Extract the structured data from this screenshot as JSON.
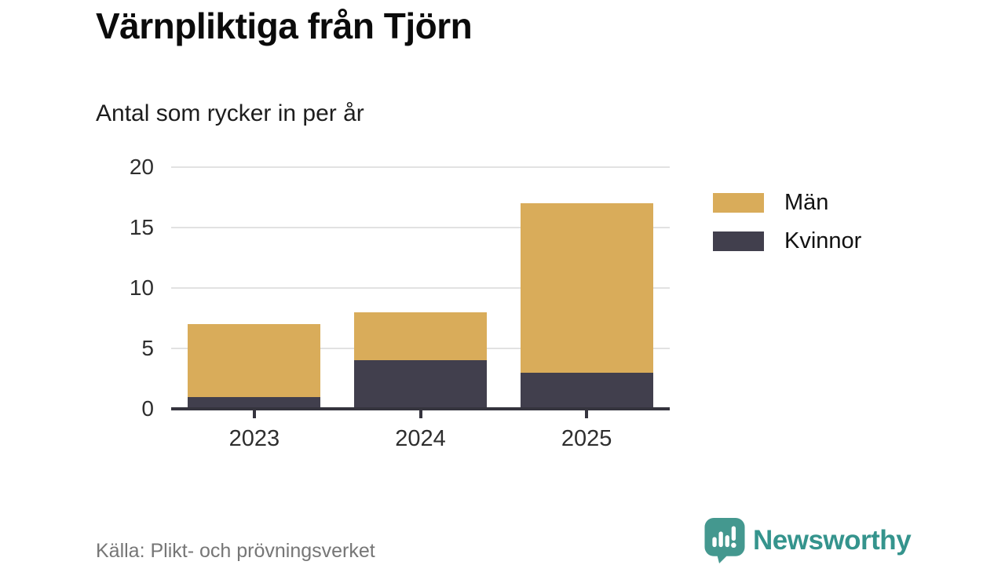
{
  "header": {
    "title": "Värnpliktiga från Tjörn",
    "subtitle": "Antal som rycker in per år"
  },
  "chart_data": {
    "type": "bar",
    "stacked": true,
    "title": "Värnpliktiga från Tjörn",
    "subtitle": "Antal som rycker in per år",
    "categories": [
      "2023",
      "2024",
      "2025"
    ],
    "series": [
      {
        "name": "Män",
        "color": "#d9ac5a",
        "values": [
          6,
          4,
          14
        ]
      },
      {
        "name": "Kvinnor",
        "color": "#413f4d",
        "values": [
          1,
          4,
          3
        ]
      }
    ],
    "totals": [
      7,
      8,
      17
    ],
    "xlabel": "",
    "ylabel": "",
    "ylim": [
      0,
      20
    ],
    "yticks": [
      0,
      5,
      10,
      15,
      20
    ],
    "grid": "horizontal",
    "legend_position": "right",
    "colors": {
      "axis_line": "#35343e",
      "gridline": "#e2e2e2",
      "tick_label": "#2e2e2e"
    }
  },
  "footer": {
    "source": "Källa: Plikt- och prövningsverket",
    "brand": "Newsworthy",
    "brand_color": "#35948d"
  }
}
